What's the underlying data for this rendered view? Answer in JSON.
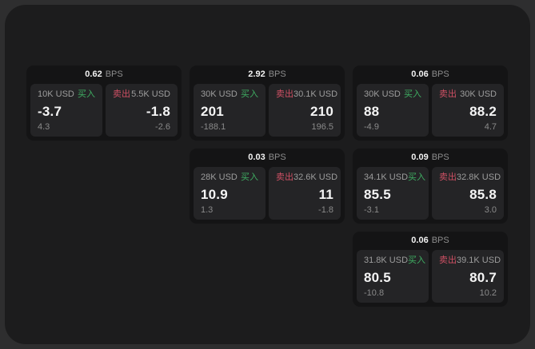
{
  "page": {
    "background": "#2e2e2f",
    "panel_background": "#1c1c1d",
    "card_background": "#141415",
    "cell_background": "#242426"
  },
  "labels": {
    "bps": "BPS",
    "buy": "买入",
    "sell": "卖出"
  },
  "colors": {
    "buy": "#3fae62",
    "sell": "#cf5064"
  },
  "cards": [
    {
      "bps": "0.62",
      "row": 1,
      "col": 1,
      "buy": {
        "amount": "10K USD",
        "price": "-3.7",
        "delta": "4.3"
      },
      "sell": {
        "amount": "5.5K USD",
        "price": "-1.8",
        "delta": "-2.6"
      }
    },
    {
      "bps": "2.92",
      "row": 1,
      "col": 2,
      "buy": {
        "amount": "30K USD",
        "price": "201",
        "delta": "-188.1"
      },
      "sell": {
        "amount": "30.1K USD",
        "price": "210",
        "delta": "196.5"
      }
    },
    {
      "bps": "0.06",
      "row": 1,
      "col": 3,
      "buy": {
        "amount": "30K USD",
        "price": "88",
        "delta": "-4.9"
      },
      "sell": {
        "amount": "30K USD",
        "price": "88.2",
        "delta": "4.7"
      }
    },
    {
      "bps": "0.03",
      "row": 2,
      "col": 2,
      "buy": {
        "amount": "28K USD",
        "price": "10.9",
        "delta": "1.3"
      },
      "sell": {
        "amount": "32.6K USD",
        "price": "11",
        "delta": "-1.8"
      }
    },
    {
      "bps": "0.09",
      "row": 2,
      "col": 3,
      "buy": {
        "amount": "34.1K USD",
        "price": "85.5",
        "delta": "-3.1"
      },
      "sell": {
        "amount": "32.8K USD",
        "price": "85.8",
        "delta": "3.0"
      }
    },
    {
      "bps": "0.06",
      "row": 3,
      "col": 3,
      "buy": {
        "amount": "31.8K USD",
        "price": "80.5",
        "delta": "-10.8"
      },
      "sell": {
        "amount": "39.1K USD",
        "price": "80.7",
        "delta": "10.2"
      }
    }
  ]
}
